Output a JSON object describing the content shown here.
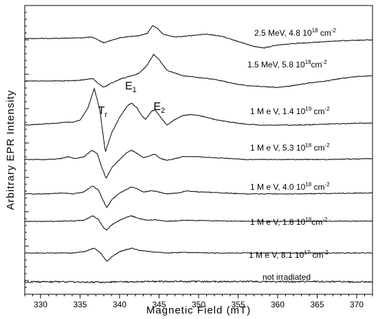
{
  "chart_data": {
    "type": "line",
    "xlabel": "Magnetic Field (mT)",
    "ylabel": "Arbitrary EPR Intensity",
    "xlim": [
      328,
      372
    ],
    "xticks": [
      330,
      335,
      340,
      345,
      350,
      355,
      360,
      365,
      370
    ],
    "y_tick_labels": "none",
    "grid": false,
    "legend": "none",
    "peak_annotations": [
      {
        "base": "T",
        "sub": "r",
        "x": 338.2
      },
      {
        "base": "E",
        "sub": "1",
        "x": 341.6
      },
      {
        "base": "E",
        "sub": "2",
        "x": 344.5
      }
    ],
    "series": [
      {
        "label_main": "2.5 MeV, 4.8 10",
        "label_exp": "18",
        "label_unit": " cm",
        "label_unit_exp": "-2",
        "points": [
          [
            328,
            0
          ],
          [
            333,
            0.2
          ],
          [
            335,
            0.8
          ],
          [
            336.5,
            2
          ],
          [
            337.3,
            -2
          ],
          [
            338,
            -6
          ],
          [
            338.8,
            -3
          ],
          [
            340,
            1
          ],
          [
            341.5,
            3
          ],
          [
            342.5,
            4
          ],
          [
            343.5,
            7
          ],
          [
            344.2,
            18
          ],
          [
            344.8,
            14
          ],
          [
            345.5,
            6
          ],
          [
            347,
            2
          ],
          [
            349,
            4
          ],
          [
            351,
            6
          ],
          [
            353,
            3
          ],
          [
            355,
            -4
          ],
          [
            357,
            -11
          ],
          [
            358.3,
            -13
          ],
          [
            360,
            -9
          ],
          [
            362,
            -7
          ],
          [
            365,
            -5
          ],
          [
            368,
            -3
          ],
          [
            372,
            -2
          ]
        ]
      },
      {
        "label_main": "1.5 MeV, 5.8 10",
        "label_exp": "18",
        "label_unit": "cm",
        "label_unit_exp": "-2",
        "points": [
          [
            328,
            0
          ],
          [
            333,
            0.3
          ],
          [
            335,
            1
          ],
          [
            336.6,
            3
          ],
          [
            337.4,
            -3
          ],
          [
            338,
            -7
          ],
          [
            338.8,
            -3
          ],
          [
            340,
            2
          ],
          [
            341.5,
            6
          ],
          [
            342.5,
            9
          ],
          [
            343.5,
            18
          ],
          [
            344.3,
            30
          ],
          [
            345,
            24
          ],
          [
            346,
            12
          ],
          [
            348,
            6
          ],
          [
            350,
            4
          ],
          [
            352,
            2
          ],
          [
            354,
            -2
          ],
          [
            356,
            -5
          ],
          [
            358,
            -6
          ],
          [
            360,
            -7
          ],
          [
            362,
            -5
          ],
          [
            364,
            -2
          ],
          [
            366,
            0
          ],
          [
            368,
            3
          ],
          [
            370,
            5
          ],
          [
            372,
            6
          ]
        ]
      },
      {
        "label_main": "1 M e V, 1.4 10",
        "label_exp": "19",
        "label_unit": " cm",
        "label_unit_exp": "-2",
        "points": [
          [
            328,
            0
          ],
          [
            330,
            1
          ],
          [
            332,
            2
          ],
          [
            333,
            3
          ],
          [
            334,
            3
          ],
          [
            335,
            5
          ],
          [
            336,
            18
          ],
          [
            336.8,
            38
          ],
          [
            337.5,
            16
          ],
          [
            338.2,
            -28
          ],
          [
            339,
            -8
          ],
          [
            340,
            8
          ],
          [
            341,
            20
          ],
          [
            341.5,
            23
          ],
          [
            342.2,
            18
          ],
          [
            342.8,
            10
          ],
          [
            343.3,
            6
          ],
          [
            344,
            14
          ],
          [
            344.5,
            16
          ],
          [
            345.2,
            8
          ],
          [
            346,
            0
          ],
          [
            347,
            6
          ],
          [
            348,
            10
          ],
          [
            349,
            11
          ],
          [
            350,
            10
          ],
          [
            352,
            6
          ],
          [
            354,
            3
          ],
          [
            356,
            1
          ],
          [
            358,
            0
          ],
          [
            362,
            0
          ],
          [
            366,
            1
          ],
          [
            370,
            2
          ],
          [
            372,
            2
          ]
        ]
      },
      {
        "label_main": "1 M e V, 5.3 10",
        "label_exp": "18",
        "label_unit": " cm",
        "label_unit_exp": "-2",
        "points": [
          [
            328,
            0
          ],
          [
            331,
            0
          ],
          [
            332.5,
            1
          ],
          [
            333.5,
            3
          ],
          [
            334.5,
            1
          ],
          [
            335.5,
            3
          ],
          [
            336.5,
            10
          ],
          [
            337.2,
            6
          ],
          [
            337.8,
            -10
          ],
          [
            338.3,
            -20
          ],
          [
            339,
            -9
          ],
          [
            340,
            0
          ],
          [
            341,
            8
          ],
          [
            341.5,
            10
          ],
          [
            342.3,
            6
          ],
          [
            343,
            2
          ],
          [
            343.8,
            4
          ],
          [
            344.4,
            6
          ],
          [
            345.2,
            1
          ],
          [
            346,
            -1
          ],
          [
            347,
            1
          ],
          [
            348,
            3
          ],
          [
            350,
            3
          ],
          [
            352,
            2
          ],
          [
            354,
            1
          ],
          [
            356,
            0
          ],
          [
            360,
            0
          ],
          [
            366,
            0
          ],
          [
            372,
            1
          ]
        ]
      },
      {
        "label_main": "1 M e V, 4.0 10",
        "label_exp": "18",
        "label_unit": " cm",
        "label_unit_exp": "-2",
        "points": [
          [
            328,
            0
          ],
          [
            331,
            0
          ],
          [
            333,
            1
          ],
          [
            334,
            0
          ],
          [
            335.5,
            2
          ],
          [
            336.6,
            8
          ],
          [
            337.3,
            4
          ],
          [
            338,
            -8
          ],
          [
            338.4,
            -14
          ],
          [
            339,
            -6
          ],
          [
            340,
            1
          ],
          [
            341,
            5
          ],
          [
            341.5,
            7
          ],
          [
            342.3,
            5
          ],
          [
            343,
            2
          ],
          [
            344,
            3
          ],
          [
            344.5,
            3
          ],
          [
            345.3,
            1
          ],
          [
            346,
            0
          ],
          [
            347.5,
            1
          ],
          [
            348.5,
            3
          ],
          [
            350,
            2
          ],
          [
            353,
            1
          ],
          [
            356,
            0
          ],
          [
            362,
            0
          ],
          [
            372,
            1
          ]
        ]
      },
      {
        "label_main": "1 M e V, 1.8 10",
        "label_exp": "18",
        "label_unit": "cm",
        "label_unit_exp": "-2",
        "points": [
          [
            328,
            0
          ],
          [
            332,
            0
          ],
          [
            334,
            0.5
          ],
          [
            335.5,
            1
          ],
          [
            336.6,
            5
          ],
          [
            337.3,
            2
          ],
          [
            338,
            -6
          ],
          [
            338.4,
            -8
          ],
          [
            339,
            -3
          ],
          [
            340,
            1
          ],
          [
            341,
            4
          ],
          [
            341.5,
            5
          ],
          [
            342.3,
            3
          ],
          [
            343.5,
            1
          ],
          [
            344.5,
            1.5
          ],
          [
            346,
            0
          ],
          [
            348,
            1
          ],
          [
            350,
            0.8
          ],
          [
            354,
            0.3
          ],
          [
            360,
            0
          ],
          [
            372,
            0.3
          ]
        ]
      },
      {
        "label_main": "1 M e V, 8.1  10",
        "label_exp": "17",
        "label_unit": " cm",
        "label_unit_exp": "-2",
        "points": [
          [
            328,
            0
          ],
          [
            332,
            0
          ],
          [
            334,
            0
          ],
          [
            335.5,
            1
          ],
          [
            336.8,
            4
          ],
          [
            337.6,
            0
          ],
          [
            338.4,
            -7
          ],
          [
            339,
            -3
          ],
          [
            340,
            1
          ],
          [
            341,
            3
          ],
          [
            341.6,
            4
          ],
          [
            342.5,
            2
          ],
          [
            344,
            1
          ],
          [
            346,
            0
          ],
          [
            348,
            0.5
          ],
          [
            352,
            0
          ],
          [
            360,
            0
          ],
          [
            372,
            0
          ]
        ]
      },
      {
        "label_main": "not irradiated",
        "label_exp": "",
        "label_unit": "",
        "label_unit_exp": "",
        "points": [
          [
            328,
            0
          ],
          [
            330,
            0
          ],
          [
            332,
            0
          ],
          [
            334,
            0
          ],
          [
            336,
            -0.5
          ],
          [
            338,
            -0.5
          ],
          [
            340,
            0
          ],
          [
            344,
            0.5
          ],
          [
            348,
            0.5
          ],
          [
            352,
            0.3
          ],
          [
            356,
            0.5
          ],
          [
            360,
            0.3
          ],
          [
            364,
            0.5
          ],
          [
            368,
            0.3
          ],
          [
            372,
            0
          ]
        ]
      }
    ]
  }
}
